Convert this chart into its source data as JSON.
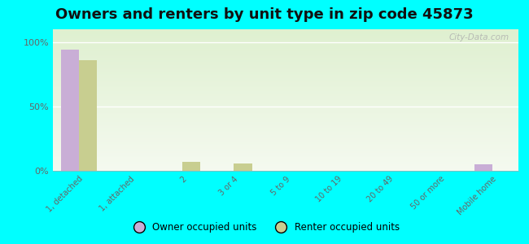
{
  "title": "Owners and renters by unit type in zip code 45873",
  "categories": [
    "1, detached",
    "1, attached",
    "2",
    "3 or 4",
    "5 to 9",
    "10 to 19",
    "20 to 49",
    "50 or more",
    "Mobile home"
  ],
  "owner_values": [
    94,
    0,
    0,
    0,
    0,
    0,
    0,
    0,
    5
  ],
  "renter_values": [
    86,
    0,
    7,
    6,
    0,
    0,
    0,
    0,
    0
  ],
  "owner_color": "#c9aed6",
  "renter_color": "#c8ce90",
  "background_color": "#00ffff",
  "title_fontsize": 13,
  "bar_width": 0.35,
  "ylim": [
    0,
    110
  ],
  "yticks": [
    0,
    50,
    100
  ],
  "ytick_labels": [
    "0%",
    "50%",
    "100%"
  ],
  "legend_owner": "Owner occupied units",
  "legend_renter": "Renter occupied units",
  "watermark": "City-Data.com"
}
